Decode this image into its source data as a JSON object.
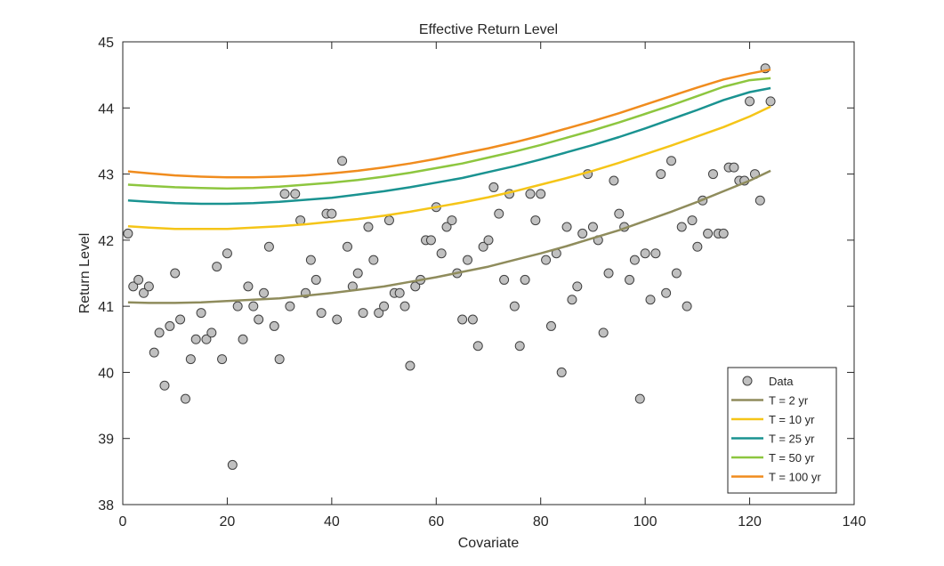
{
  "chart_data": {
    "type": "scatter",
    "title": "Effective Return Level",
    "xlabel": "Covariate",
    "ylabel": "Return Level",
    "xlim": [
      0,
      140
    ],
    "ylim": [
      38,
      45
    ],
    "xticks": [
      "0",
      "20",
      "40",
      "60",
      "80",
      "100",
      "120",
      "140"
    ],
    "yticks": [
      "38",
      "39",
      "40",
      "41",
      "42",
      "43",
      "44",
      "45"
    ],
    "grid": false,
    "legend_position": "bottom-right",
    "series": [
      {
        "name": "Data",
        "kind": "scatter",
        "color": "#c0c0c0",
        "points": [
          [
            1,
            42.1
          ],
          [
            2,
            41.3
          ],
          [
            3,
            41.4
          ],
          [
            4,
            41.2
          ],
          [
            5,
            41.3
          ],
          [
            6,
            40.3
          ],
          [
            7,
            40.6
          ],
          [
            8,
            39.8
          ],
          [
            9,
            40.7
          ],
          [
            10,
            41.5
          ],
          [
            11,
            40.8
          ],
          [
            12,
            39.6
          ],
          [
            13,
            40.2
          ],
          [
            14,
            40.5
          ],
          [
            15,
            40.9
          ],
          [
            16,
            40.5
          ],
          [
            17,
            40.6
          ],
          [
            18,
            41.6
          ],
          [
            19,
            40.2
          ],
          [
            20,
            41.8
          ],
          [
            21,
            38.6
          ],
          [
            22,
            41.0
          ],
          [
            23,
            40.5
          ],
          [
            24,
            41.3
          ],
          [
            25,
            41.0
          ],
          [
            26,
            40.8
          ],
          [
            27,
            41.2
          ],
          [
            28,
            41.9
          ],
          [
            29,
            40.7
          ],
          [
            30,
            40.2
          ],
          [
            31,
            42.7
          ],
          [
            32,
            41.0
          ],
          [
            33,
            42.7
          ],
          [
            34,
            42.3
          ],
          [
            35,
            41.2
          ],
          [
            36,
            41.7
          ],
          [
            37,
            41.4
          ],
          [
            38,
            40.9
          ],
          [
            39,
            42.4
          ],
          [
            40,
            42.4
          ],
          [
            41,
            40.8
          ],
          [
            42,
            43.2
          ],
          [
            43,
            41.9
          ],
          [
            44,
            41.3
          ],
          [
            45,
            41.5
          ],
          [
            46,
            40.9
          ],
          [
            47,
            42.2
          ],
          [
            48,
            41.7
          ],
          [
            49,
            40.9
          ],
          [
            50,
            41.0
          ],
          [
            51,
            42.3
          ],
          [
            52,
            41.2
          ],
          [
            53,
            41.2
          ],
          [
            54,
            41.0
          ],
          [
            55,
            40.1
          ],
          [
            56,
            41.3
          ],
          [
            57,
            41.4
          ],
          [
            58,
            42.0
          ],
          [
            59,
            42.0
          ],
          [
            60,
            42.5
          ],
          [
            61,
            41.8
          ],
          [
            62,
            42.2
          ],
          [
            63,
            42.3
          ],
          [
            64,
            41.5
          ],
          [
            65,
            40.8
          ],
          [
            66,
            41.7
          ],
          [
            67,
            40.8
          ],
          [
            68,
            40.4
          ],
          [
            69,
            41.9
          ],
          [
            70,
            42.0
          ],
          [
            71,
            42.8
          ],
          [
            72,
            42.4
          ],
          [
            73,
            41.4
          ],
          [
            74,
            42.7
          ],
          [
            75,
            41.0
          ],
          [
            76,
            40.4
          ],
          [
            77,
            41.4
          ],
          [
            78,
            42.7
          ],
          [
            79,
            42.3
          ],
          [
            80,
            42.7
          ],
          [
            81,
            41.7
          ],
          [
            82,
            40.7
          ],
          [
            83,
            41.8
          ],
          [
            84,
            40.0
          ],
          [
            85,
            42.2
          ],
          [
            86,
            41.1
          ],
          [
            87,
            41.3
          ],
          [
            88,
            42.1
          ],
          [
            89,
            43.0
          ],
          [
            90,
            42.2
          ],
          [
            91,
            42.0
          ],
          [
            92,
            40.6
          ],
          [
            93,
            41.5
          ],
          [
            94,
            42.9
          ],
          [
            95,
            42.4
          ],
          [
            96,
            42.2
          ],
          [
            97,
            41.4
          ],
          [
            98,
            41.7
          ],
          [
            99,
            39.6
          ],
          [
            100,
            41.8
          ],
          [
            101,
            41.1
          ],
          [
            102,
            41.8
          ],
          [
            103,
            43.0
          ],
          [
            104,
            41.2
          ],
          [
            105,
            43.2
          ],
          [
            106,
            41.5
          ],
          [
            107,
            42.2
          ],
          [
            108,
            41.0
          ],
          [
            109,
            42.3
          ],
          [
            110,
            41.9
          ],
          [
            111,
            42.6
          ],
          [
            112,
            42.1
          ],
          [
            113,
            43.0
          ],
          [
            114,
            42.1
          ],
          [
            115,
            42.1
          ],
          [
            116,
            43.1
          ],
          [
            117,
            43.1
          ],
          [
            118,
            42.9
          ],
          [
            119,
            42.9
          ],
          [
            120,
            44.1
          ],
          [
            121,
            43.0
          ],
          [
            122,
            42.6
          ],
          [
            123,
            44.6
          ],
          [
            124,
            44.1
          ]
        ]
      },
      {
        "name": "T = 2 yr",
        "kind": "line",
        "color": "#8f8c5c",
        "x": [
          1,
          5,
          10,
          15,
          20,
          25,
          30,
          35,
          40,
          45,
          50,
          55,
          60,
          65,
          70,
          75,
          80,
          85,
          90,
          95,
          100,
          105,
          110,
          115,
          120,
          124
        ],
        "y": [
          41.06,
          41.05,
          41.05,
          41.06,
          41.08,
          41.1,
          41.12,
          41.16,
          41.2,
          41.25,
          41.3,
          41.37,
          41.44,
          41.52,
          41.6,
          41.7,
          41.8,
          41.91,
          42.03,
          42.15,
          42.29,
          42.43,
          42.58,
          42.74,
          42.9,
          43.05
        ]
      },
      {
        "name": "T = 10 yr",
        "kind": "line",
        "color": "#f5c518",
        "x": [
          1,
          5,
          10,
          15,
          20,
          25,
          30,
          35,
          40,
          45,
          50,
          55,
          60,
          65,
          70,
          75,
          80,
          85,
          90,
          95,
          100,
          105,
          110,
          115,
          120,
          124
        ],
        "y": [
          42.21,
          42.19,
          42.17,
          42.17,
          42.17,
          42.19,
          42.21,
          42.24,
          42.28,
          42.32,
          42.37,
          42.43,
          42.5,
          42.57,
          42.65,
          42.74,
          42.84,
          42.94,
          43.05,
          43.17,
          43.3,
          43.43,
          43.57,
          43.71,
          43.87,
          44.02
        ]
      },
      {
        "name": "T = 25 yr",
        "kind": "line",
        "color": "#1a9391",
        "x": [
          1,
          5,
          10,
          15,
          20,
          25,
          30,
          35,
          40,
          45,
          50,
          55,
          60,
          65,
          70,
          75,
          80,
          85,
          90,
          95,
          100,
          105,
          110,
          115,
          120,
          124
        ],
        "y": [
          42.6,
          42.58,
          42.56,
          42.55,
          42.55,
          42.56,
          42.58,
          42.61,
          42.64,
          42.69,
          42.74,
          42.8,
          42.87,
          42.94,
          43.03,
          43.12,
          43.22,
          43.33,
          43.44,
          43.56,
          43.69,
          43.83,
          43.97,
          44.12,
          44.24,
          44.3
        ]
      },
      {
        "name": "T = 50 yr",
        "kind": "line",
        "color": "#8dc63f",
        "x": [
          1,
          5,
          10,
          15,
          20,
          25,
          30,
          35,
          40,
          45,
          50,
          55,
          60,
          65,
          70,
          75,
          80,
          85,
          90,
          95,
          100,
          105,
          110,
          115,
          120,
          124
        ],
        "y": [
          42.84,
          42.82,
          42.8,
          42.79,
          42.78,
          42.79,
          42.81,
          42.84,
          42.87,
          42.91,
          42.96,
          43.02,
          43.09,
          43.16,
          43.25,
          43.34,
          43.44,
          43.55,
          43.66,
          43.78,
          43.91,
          44.04,
          44.18,
          44.32,
          44.42,
          44.45
        ]
      },
      {
        "name": "T = 100 yr",
        "kind": "line",
        "color": "#f08c1e",
        "x": [
          1,
          5,
          10,
          15,
          20,
          25,
          30,
          35,
          40,
          45,
          50,
          55,
          60,
          65,
          70,
          75,
          80,
          85,
          90,
          95,
          100,
          105,
          110,
          115,
          120,
          124
        ],
        "y": [
          43.04,
          43.01,
          42.98,
          42.96,
          42.95,
          42.95,
          42.96,
          42.98,
          43.01,
          43.05,
          43.1,
          43.16,
          43.23,
          43.31,
          43.39,
          43.48,
          43.58,
          43.69,
          43.8,
          43.92,
          44.05,
          44.18,
          44.31,
          44.43,
          44.52,
          44.58
        ]
      }
    ]
  }
}
